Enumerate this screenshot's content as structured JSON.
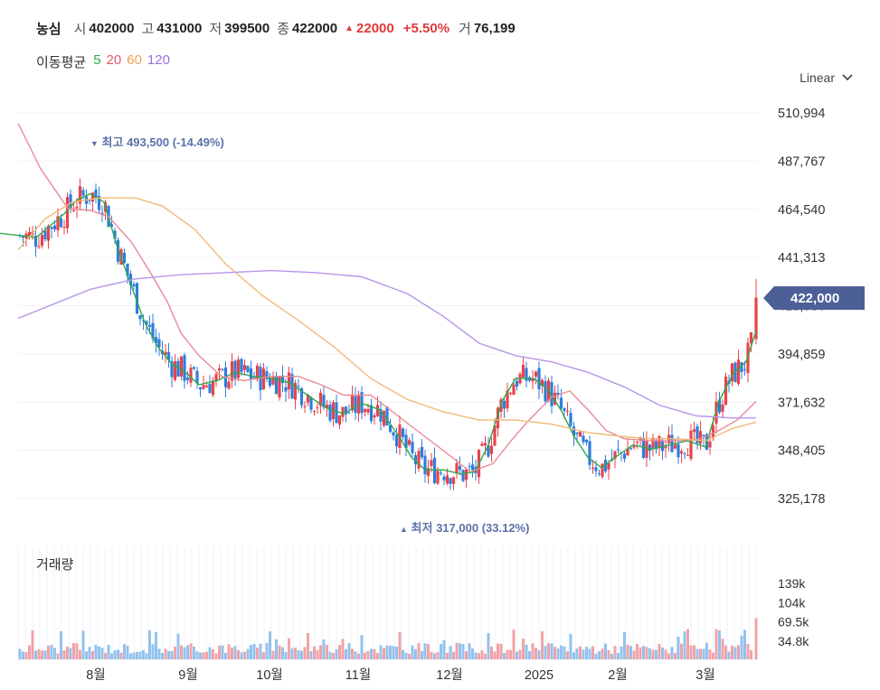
{
  "header": {
    "stock_name": "농심",
    "open_label": "시",
    "open": "402000",
    "high_label": "고",
    "high": "431000",
    "low_label": "저",
    "low": "399500",
    "close_label": "종",
    "close": "422000",
    "change_icon": "triangle-up-icon",
    "change": "22000",
    "change_pct": "+5.50%",
    "volume_label": "거",
    "volume": "76,199"
  },
  "moving_averages": {
    "label": "이동평균",
    "items": [
      {
        "period": "5",
        "color": "#2ea84a"
      },
      {
        "period": "20",
        "color": "#e4586c"
      },
      {
        "period": "60",
        "color": "#f0a050"
      },
      {
        "period": "120",
        "color": "#9b6fe0"
      }
    ]
  },
  "scale_selector": {
    "value": "Linear",
    "icon": "chevron-down-icon"
  },
  "current_price_badge": "422,000",
  "volume_title": "거래량",
  "colors": {
    "up": "#e8434a",
    "down": "#2f7ddc",
    "vol_up": "#f0a3a8",
    "vol_down": "#94c2ee",
    "badge": "#4c5f96",
    "annotation": "#5b72a8"
  },
  "chart_data": {
    "type": "candlestick",
    "price_axis": {
      "ticks": [
        "510,994",
        "487,767",
        "464,540",
        "441,313",
        "418,086",
        "394,859",
        "371,632",
        "348,405",
        "325,178"
      ],
      "tick_values": [
        510994,
        487767,
        464540,
        441313,
        418086,
        394859,
        371632,
        348405,
        325178
      ]
    },
    "time_axis": {
      "ticks": [
        "8월",
        "9월",
        "10월",
        "11월",
        "12월",
        "2025",
        "2월",
        "3월"
      ]
    },
    "volume_axis": {
      "ticks": [
        "139k",
        "104k",
        "69.5k",
        "34.8k"
      ],
      "tick_values": [
        139000,
        104000,
        69500,
        34800
      ]
    },
    "annotations": {
      "high": {
        "marker": "▼",
        "label": "최고",
        "value": "493,500",
        "pct": "(-14.49%)",
        "price": 493500
      },
      "low": {
        "marker": "▲",
        "label": "최저",
        "value": "317,000",
        "pct": "(33.12%)",
        "price": 317000
      }
    },
    "last": {
      "open": 402000,
      "high": 431000,
      "low": 399500,
      "close": 422000,
      "volume": 76199
    },
    "ma_series": {
      "ma5": [
        [
          0,
          453000
        ],
        [
          40,
          451000
        ],
        [
          70,
          462000
        ],
        [
          85,
          469000
        ],
        [
          100,
          472000
        ],
        [
          115,
          468000
        ],
        [
          130,
          446000
        ],
        [
          145,
          428000
        ],
        [
          160,
          410000
        ],
        [
          175,
          398000
        ],
        [
          190,
          390000
        ],
        [
          205,
          386000
        ],
        [
          220,
          380000
        ],
        [
          240,
          382000
        ],
        [
          260,
          386000
        ],
        [
          280,
          384000
        ],
        [
          300,
          383000
        ],
        [
          320,
          381000
        ],
        [
          340,
          375000
        ],
        [
          360,
          369000
        ],
        [
          380,
          366000
        ],
        [
          400,
          371000
        ],
        [
          420,
          368000
        ],
        [
          440,
          356000
        ],
        [
          455,
          345000
        ],
        [
          470,
          339000
        ],
        [
          490,
          339000
        ],
        [
          510,
          337000
        ],
        [
          525,
          338000
        ],
        [
          540,
          351000
        ],
        [
          555,
          372000
        ],
        [
          570,
          383000
        ],
        [
          590,
          383000
        ],
        [
          605,
          378000
        ],
        [
          620,
          368000
        ],
        [
          635,
          355000
        ],
        [
          650,
          345000
        ],
        [
          665,
          340000
        ],
        [
          680,
          345000
        ],
        [
          700,
          351000
        ],
        [
          720,
          349000
        ],
        [
          740,
          351000
        ],
        [
          760,
          353000
        ],
        [
          780,
          350000
        ],
        [
          795,
          372000
        ],
        [
          810,
          385000
        ],
        [
          825,
          391000
        ],
        [
          836,
          406000
        ]
      ],
      "ma20": [
        [
          20,
          506000
        ],
        [
          45,
          484000
        ],
        [
          75,
          465000
        ],
        [
          100,
          464000
        ],
        [
          120,
          461000
        ],
        [
          145,
          449000
        ],
        [
          165,
          435000
        ],
        [
          185,
          420000
        ],
        [
          200,
          405000
        ],
        [
          220,
          394000
        ],
        [
          245,
          384000
        ],
        [
          270,
          382000
        ],
        [
          300,
          384000
        ],
        [
          330,
          384000
        ],
        [
          355,
          380000
        ],
        [
          380,
          375000
        ],
        [
          410,
          375000
        ],
        [
          440,
          365000
        ],
        [
          470,
          355000
        ],
        [
          500,
          345000
        ],
        [
          520,
          338000
        ],
        [
          545,
          342000
        ],
        [
          565,
          353000
        ],
        [
          585,
          363000
        ],
        [
          610,
          374000
        ],
        [
          630,
          377000
        ],
        [
          650,
          368000
        ],
        [
          670,
          358000
        ],
        [
          690,
          354000
        ],
        [
          720,
          353000
        ],
        [
          750,
          353000
        ],
        [
          775,
          354000
        ],
        [
          795,
          358000
        ],
        [
          815,
          363000
        ],
        [
          836,
          372000
        ]
      ],
      "ma60": [
        [
          20,
          445000
        ],
        [
          50,
          460000
        ],
        [
          80,
          468000
        ],
        [
          110,
          470000
        ],
        [
          150,
          470000
        ],
        [
          180,
          466000
        ],
        [
          215,
          455000
        ],
        [
          250,
          438000
        ],
        [
          290,
          423000
        ],
        [
          330,
          411000
        ],
        [
          370,
          398000
        ],
        [
          410,
          383000
        ],
        [
          450,
          373000
        ],
        [
          490,
          367000
        ],
        [
          530,
          363000
        ],
        [
          570,
          363000
        ],
        [
          610,
          361000
        ],
        [
          650,
          357000
        ],
        [
          690,
          355000
        ],
        [
          720,
          354000
        ],
        [
          750,
          354000
        ],
        [
          780,
          353000
        ],
        [
          810,
          359000
        ],
        [
          836,
          362000
        ]
      ],
      "ma120": [
        [
          20,
          412000
        ],
        [
          60,
          419000
        ],
        [
          100,
          426000
        ],
        [
          150,
          431000
        ],
        [
          200,
          433000
        ],
        [
          250,
          434000
        ],
        [
          300,
          435000
        ],
        [
          350,
          434000
        ],
        [
          400,
          432000
        ],
        [
          450,
          424000
        ],
        [
          490,
          413000
        ],
        [
          530,
          400000
        ],
        [
          570,
          394000
        ],
        [
          610,
          391000
        ],
        [
          650,
          386000
        ],
        [
          690,
          379000
        ],
        [
          730,
          370000
        ],
        [
          770,
          365000
        ],
        [
          810,
          364000
        ],
        [
          836,
          364000
        ]
      ]
    }
  }
}
